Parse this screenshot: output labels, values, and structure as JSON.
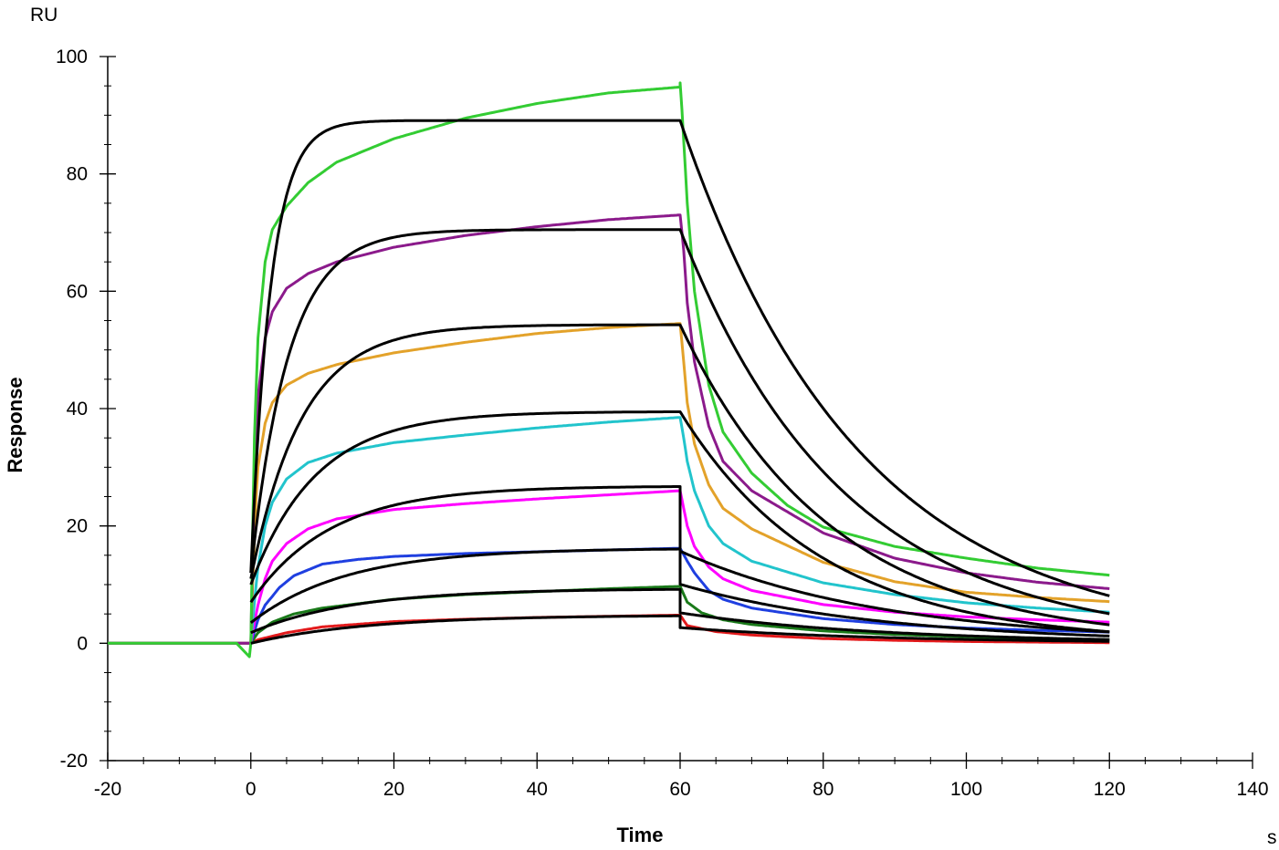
{
  "chart_data": {
    "type": "line",
    "title": "",
    "xlabel": "Time",
    "ylabel": "Response",
    "x_unit": "s",
    "y_unit": "RU",
    "xlim": [
      -20,
      140
    ],
    "ylim": [
      -20,
      100
    ],
    "x_ticks": [
      -20,
      0,
      20,
      40,
      60,
      80,
      100,
      120,
      140
    ],
    "y_ticks": [
      -20,
      0,
      20,
      40,
      60,
      80,
      100
    ],
    "x_tick_labels": [
      "-20",
      "0",
      "20",
      "40",
      "60",
      "80",
      "100",
      "120",
      "140"
    ],
    "y_tick_labels": [
      "-20",
      "0",
      "20",
      "40",
      "60",
      "80",
      "100"
    ],
    "grid": false,
    "legend": "none",
    "x_end": 120,
    "series": [
      {
        "color": "#e31a1c",
        "baseline_x": [
          -20,
          -2,
          0
        ],
        "association": {
          "x": [
            0,
            1,
            5,
            10,
            20,
            30,
            40,
            50,
            60
          ],
          "y": [
            0,
            0.6,
            1.8,
            2.8,
            3.7,
            4.1,
            4.4,
            4.6,
            4.8
          ]
        },
        "dissociation": {
          "x": [
            60,
            61,
            65,
            70,
            80,
            90,
            100,
            110,
            120
          ],
          "y": [
            4.8,
            3.0,
            2.0,
            1.4,
            0.8,
            0.5,
            0.3,
            0.2,
            0.1
          ]
        }
      },
      {
        "color": "#1a7a1a",
        "baseline_x": [
          -20,
          -2,
          0
        ],
        "association": {
          "x": [
            0,
            1,
            3,
            6,
            10,
            20,
            30,
            40,
            50,
            60
          ],
          "y": [
            0,
            1.8,
            3.6,
            5.0,
            6.0,
            7.5,
            8.3,
            8.8,
            9.3,
            9.7
          ]
        },
        "dissociation": {
          "x": [
            60,
            61,
            63,
            66,
            70,
            80,
            90,
            100,
            110,
            120
          ],
          "y": [
            9.7,
            7.0,
            5.2,
            4.0,
            3.2,
            2.1,
            1.5,
            1.1,
            0.8,
            0.6
          ]
        }
      },
      {
        "color": "#1f3fe0",
        "baseline_x": [
          -20,
          -2,
          0
        ],
        "association": {
          "x": [
            0,
            1,
            2,
            4,
            6,
            10,
            15,
            20,
            30,
            40,
            50,
            60
          ],
          "y": [
            0,
            4.0,
            6.5,
            9.5,
            11.5,
            13.5,
            14.3,
            14.8,
            15.3,
            15.6,
            15.9,
            16.2
          ]
        },
        "dissociation": {
          "x": [
            60,
            61,
            62,
            64,
            66,
            70,
            80,
            90,
            100,
            110,
            120
          ],
          "y": [
            16.2,
            14.0,
            12.0,
            9.0,
            7.5,
            6.0,
            4.2,
            3.2,
            2.6,
            2.2,
            1.9
          ]
        }
      },
      {
        "color": "#ff00ff",
        "baseline_x": [
          -20,
          -2,
          0
        ],
        "association": {
          "x": [
            0,
            0.5,
            1,
            2,
            3,
            5,
            8,
            12,
            20,
            30,
            40,
            50,
            60
          ],
          "y": [
            0,
            3.5,
            6.5,
            11.0,
            14.0,
            17.0,
            19.5,
            21.2,
            22.8,
            23.8,
            24.6,
            25.3,
            26.0
          ]
        },
        "dissociation": {
          "x": [
            60,
            60.5,
            61,
            62,
            64,
            66,
            70,
            80,
            90,
            100,
            110,
            120
          ],
          "y": [
            26.0,
            23.0,
            20.0,
            16.5,
            13.0,
            11.0,
            9.0,
            6.6,
            5.3,
            4.5,
            4.0,
            3.6
          ]
        }
      },
      {
        "color": "#22c4cc",
        "baseline_x": [
          -20,
          -2,
          0
        ],
        "association": {
          "x": [
            0,
            0.5,
            1,
            2,
            3,
            5,
            8,
            12,
            20,
            30,
            40,
            50,
            60
          ],
          "y": [
            0,
            7.0,
            13.0,
            20.0,
            24.0,
            28.0,
            30.8,
            32.4,
            34.2,
            35.5,
            36.7,
            37.7,
            38.5
          ]
        },
        "dissociation": {
          "x": [
            60,
            60.5,
            61,
            62,
            64,
            66,
            70,
            80,
            90,
            100,
            110,
            120
          ],
          "y": [
            38.5,
            35.0,
            31.0,
            26.0,
            20.0,
            17.0,
            14.0,
            10.3,
            8.3,
            6.9,
            6.0,
            5.3
          ]
        }
      },
      {
        "color": "#e3a22a",
        "baseline_x": [
          -20,
          -2,
          0
        ],
        "association": {
          "x": [
            0,
            0.3,
            0.7,
            1,
            2,
            3,
            5,
            8,
            12,
            20,
            30,
            40,
            50,
            60
          ],
          "y": [
            0,
            12.0,
            24.0,
            30.0,
            37.5,
            41.0,
            44.0,
            46.0,
            47.5,
            49.5,
            51.3,
            52.8,
            53.8,
            54.5
          ]
        },
        "dissociation": {
          "x": [
            60,
            60.5,
            61,
            62,
            64,
            66,
            70,
            80,
            90,
            100,
            110,
            120
          ],
          "y": [
            54.5,
            48.0,
            41.0,
            34.0,
            27.0,
            23.0,
            19.5,
            13.8,
            10.5,
            8.7,
            7.8,
            7.1
          ]
        }
      },
      {
        "color": "#8b1a8b",
        "baseline_x": [
          -20,
          -2,
          0
        ],
        "association": {
          "x": [
            0,
            0.3,
            0.6,
            1,
            2,
            3,
            5,
            8,
            12,
            20,
            30,
            40,
            50,
            60
          ],
          "y": [
            0,
            18.0,
            33.0,
            42.0,
            52.0,
            56.5,
            60.5,
            63.0,
            65.0,
            67.5,
            69.5,
            71.0,
            72.2,
            73.0
          ]
        },
        "dissociation": {
          "x": [
            60,
            60.5,
            61,
            62,
            64,
            66,
            70,
            80,
            90,
            100,
            110,
            120
          ],
          "y": [
            73.0,
            67.0,
            58.0,
            48.0,
            37.0,
            31.0,
            26.0,
            18.8,
            14.5,
            12.0,
            10.4,
            9.3
          ]
        }
      },
      {
        "color": "#33cc33",
        "baseline_x": [
          -20,
          -2,
          -0.2,
          0
        ],
        "baseline_dip": [
          0,
          0,
          -2.3,
          0
        ],
        "association": {
          "x": [
            0,
            0.2,
            0.5,
            1,
            2,
            3,
            5,
            8,
            12,
            20,
            30,
            40,
            50,
            60
          ],
          "y": [
            0,
            15.0,
            35.0,
            52.0,
            65.0,
            70.5,
            74.5,
            78.5,
            82.0,
            86.0,
            89.5,
            92.0,
            93.8,
            94.8
          ]
        },
        "dissociation": {
          "x": [
            60,
            60.3,
            61,
            62,
            64,
            66,
            70,
            75,
            80,
            90,
            100,
            110,
            120
          ],
          "y": [
            95.5,
            90.0,
            75.0,
            60.0,
            44.0,
            36.0,
            29.0,
            23.5,
            19.8,
            16.5,
            14.5,
            12.8,
            11.6
          ]
        }
      }
    ],
    "fits": {
      "color": "#000000",
      "rmax": [
        4.8,
        9.3,
        16.2,
        26.8,
        39.5,
        54.3,
        70.5,
        89.1
      ],
      "kon_obs": [
        0.06,
        0.07,
        0.075,
        0.09,
        0.11,
        0.14,
        0.19,
        0.36
      ],
      "association_offset": [
        0,
        1.8,
        3.5,
        7.0,
        10.0,
        11.0,
        12.0,
        12.0
      ],
      "drop_at_60": [
        2.0,
        4.0,
        6.0,
        11.0,
        0,
        0,
        0,
        0
      ],
      "koff": [
        0.035,
        0.035,
        0.035,
        0.035,
        0.05,
        0.0475,
        0.044,
        0.04
      ],
      "association_x": [
        0,
        60
      ],
      "dissociation_x": [
        60,
        120
      ]
    }
  }
}
